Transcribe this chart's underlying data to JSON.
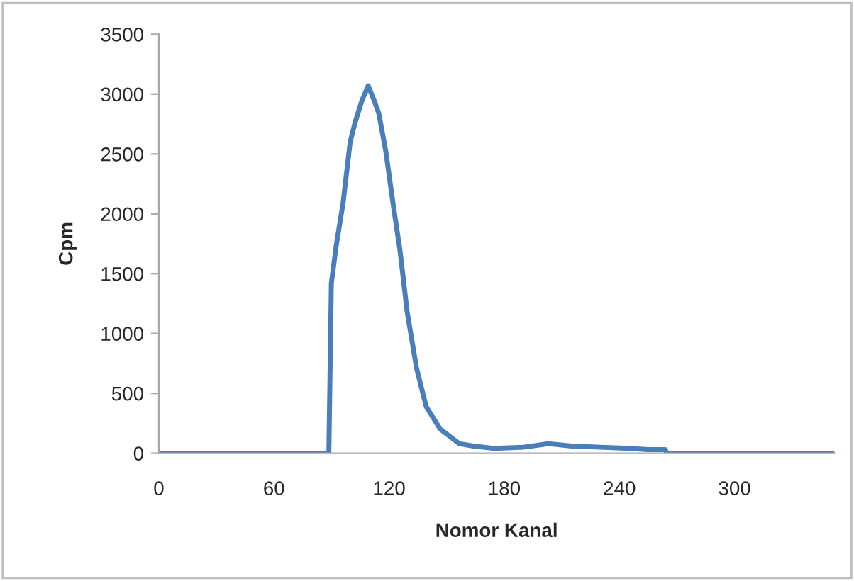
{
  "chart_data": {
    "type": "line",
    "xlabel": "Nomor Kanal",
    "ylabel": "Cpm",
    "xlim": [
      0,
      352
    ],
    "xticks": [
      0,
      60,
      120,
      180,
      240,
      300
    ],
    "ylim": [
      0,
      3500
    ],
    "yticks": [
      0,
      500,
      1000,
      1500,
      2000,
      2500,
      3000,
      3500
    ],
    "grid": false,
    "marker": "none",
    "line_style": "solid",
    "series": [
      {
        "color": "#4a7ebb",
        "x": [
          0,
          40,
          88.6,
          89.9,
          92.4,
          96,
          99.7,
          102.2,
          105.9,
          109.1,
          112.1,
          114.6,
          118.3,
          122,
          125.7,
          129.4,
          134.3,
          139.3,
          146.7,
          156.5,
          163.9,
          175,
          190,
          203,
          215,
          230,
          245,
          255,
          264,
          264.5,
          300,
          352
        ],
        "values": [
          0,
          0,
          0,
          1420,
          1730,
          2090,
          2600,
          2760,
          2950,
          3070,
          2950,
          2840,
          2520,
          2090,
          1690,
          1180,
          710,
          390,
          200,
          80,
          60,
          40,
          50,
          80,
          60,
          50,
          40,
          30,
          30,
          0,
          0,
          0
        ]
      }
    ]
  }
}
